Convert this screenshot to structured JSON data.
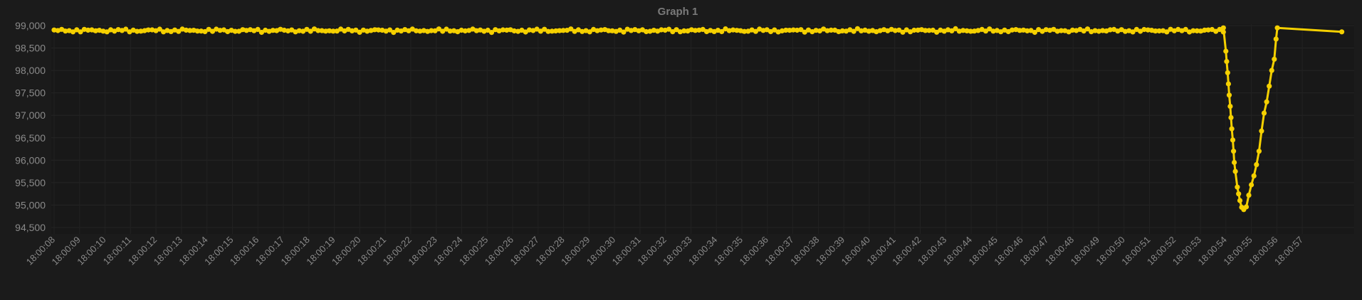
{
  "chart_data": {
    "type": "line",
    "title": "Graph 1",
    "xlabel": "",
    "ylabel": "",
    "ylim": [
      94500,
      99000
    ],
    "ytick_labels": [
      "99,000",
      "98,500",
      "98,000",
      "97,500",
      "97,000",
      "96,500",
      "96,000",
      "95,500",
      "95,000",
      "94,500"
    ],
    "ytick_values": [
      99000,
      98500,
      98000,
      97500,
      97000,
      96500,
      96000,
      95500,
      95000,
      94500
    ],
    "xtick_labels": [
      "18:00:08",
      "18:00:09",
      "18:00:10",
      "18:00:11",
      "18:00:12",
      "18:00:13",
      "18:00:14",
      "18:00:15",
      "18:00:16",
      "18:00:17",
      "18:00:18",
      "18:00:19",
      "18:00:20",
      "18:00:21",
      "18:00:22",
      "18:00:23",
      "18:00:24",
      "18:00:25",
      "18:00:26",
      "18:00:27",
      "18:00:28",
      "18:00:29",
      "18:00:30",
      "18:00:31",
      "18:00:32",
      "18:00:33",
      "18:00:34",
      "18:00:35",
      "18:00:36",
      "18:00:37",
      "18:00:38",
      "18:00:39",
      "18:00:40",
      "18:00:41",
      "18:00:42",
      "18:00:43",
      "18:00:44",
      "18:00:45",
      "18:00:46",
      "18:00:47",
      "18:00:48",
      "18:00:49",
      "18:00:50",
      "18:00:51",
      "18:00:52",
      "18:00:53",
      "18:00:54",
      "18:00:55",
      "18:00:56",
      "18:00:57"
    ],
    "xlim": [
      0,
      50.7
    ],
    "grid": true,
    "legend": "none",
    "series": [
      {
        "name": "Graph 1",
        "color": "#f5d000",
        "baseline_range": [
          0,
          45.9
        ],
        "baseline_value": 98890,
        "baseline_jitter": 40,
        "points": [
          [
            45.9,
            98950
          ],
          [
            46.0,
            98430
          ],
          [
            46.03,
            98200
          ],
          [
            46.07,
            97950
          ],
          [
            46.1,
            97700
          ],
          [
            46.13,
            97450
          ],
          [
            46.17,
            97200
          ],
          [
            46.2,
            96950
          ],
          [
            46.23,
            96700
          ],
          [
            46.27,
            96450
          ],
          [
            46.3,
            96200
          ],
          [
            46.33,
            95950
          ],
          [
            46.37,
            95750
          ],
          [
            46.45,
            95400
          ],
          [
            46.5,
            95250
          ],
          [
            46.55,
            95100
          ],
          [
            46.62,
            94950
          ],
          [
            46.7,
            94900
          ],
          [
            46.8,
            94960
          ],
          [
            46.9,
            95220
          ],
          [
            47.0,
            95450
          ],
          [
            47.1,
            95650
          ],
          [
            47.2,
            95900
          ],
          [
            47.3,
            96200
          ],
          [
            47.4,
            96650
          ],
          [
            47.5,
            97050
          ],
          [
            47.6,
            97300
          ],
          [
            47.7,
            97650
          ],
          [
            47.8,
            98000
          ],
          [
            47.9,
            98250
          ],
          [
            47.97,
            98700
          ],
          [
            48.02,
            98950
          ],
          [
            50.55,
            98860
          ]
        ]
      }
    ]
  }
}
